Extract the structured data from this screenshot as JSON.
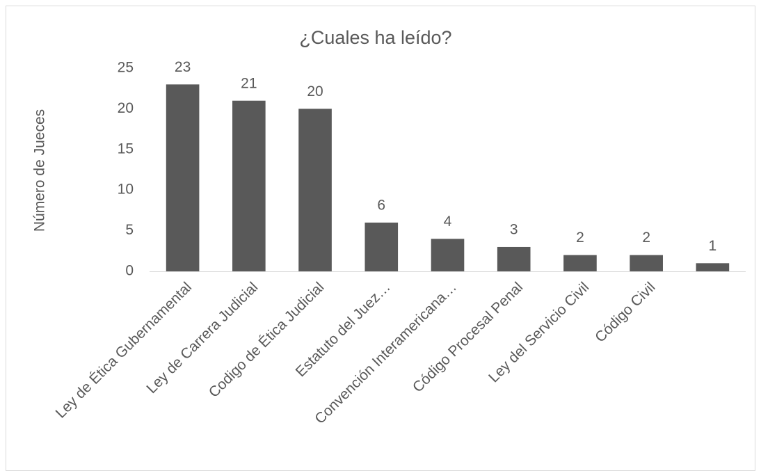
{
  "chart_data": {
    "type": "bar",
    "title": "¿Cuales ha leído?",
    "y_label": "Número de Jueces",
    "categories": [
      "Ley de Ética Gubernamental",
      "Ley de Carrera Judicial",
      "Codigo de Ética Judicial",
      "Estatuto del Juez…",
      "Convención Interamericana…",
      "Código Procesal Penal",
      "Ley del Servicio Civil",
      "Código Civil",
      null
    ],
    "values": [
      23,
      21,
      20,
      6,
      4,
      3,
      2,
      2,
      1
    ],
    "color": "#595959",
    "ylim": [
      0,
      25
    ],
    "yticks": [
      0,
      5,
      10,
      15,
      20,
      25
    ],
    "grid": false
  }
}
